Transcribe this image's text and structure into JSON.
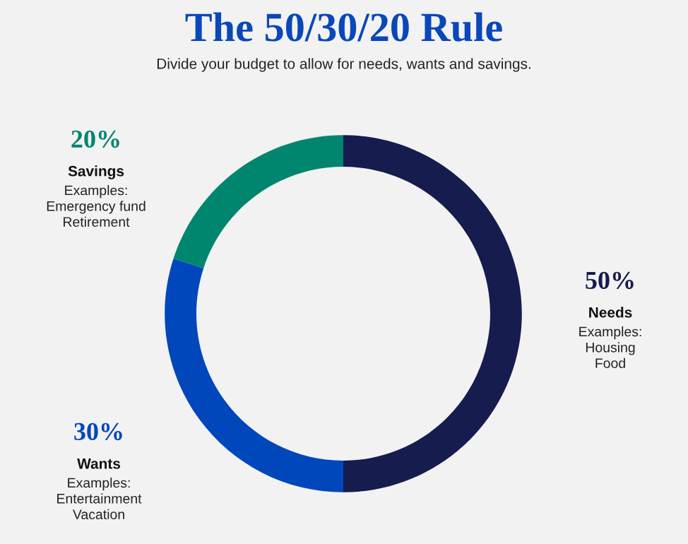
{
  "chart_data": {
    "type": "donut",
    "title": "The 50/30/20 Rule",
    "subtitle": "Divide your budget to allow for needs, wants and savings.",
    "categories": [
      "Needs",
      "Wants",
      "Savings"
    ],
    "values": [
      50,
      30,
      20
    ],
    "value_labels": [
      "50%",
      "30%",
      "20%"
    ],
    "colors": [
      "#161c4e",
      "#0047bb",
      "#00856f"
    ],
    "annotations": [
      "Examples:\nHousing\nFood",
      "Examples:\nEntertainment\nVacation",
      "Examples:\nEmergency fund\nRetirement"
    ],
    "legend": false
  }
}
